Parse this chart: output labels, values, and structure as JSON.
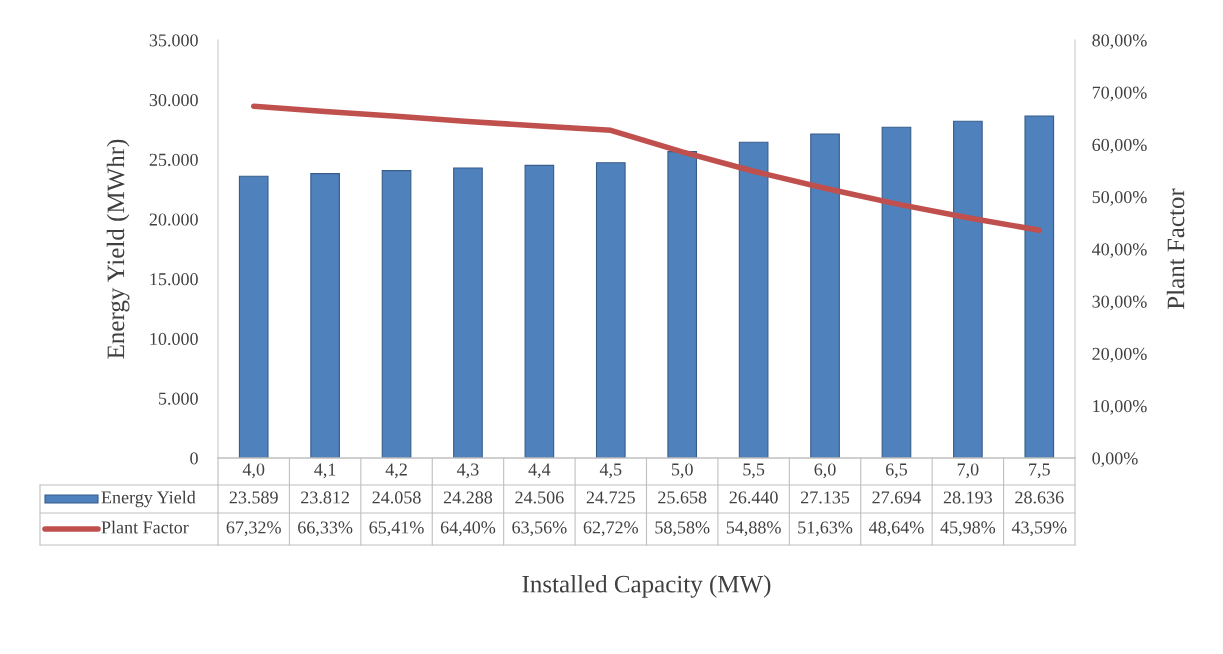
{
  "chart_data": {
    "type": "bar",
    "categories": [
      "4,0",
      "4,1",
      "4,2",
      "4,3",
      "4,4",
      "4,5",
      "5,0",
      "5,5",
      "6,0",
      "6,5",
      "7,0",
      "7,5"
    ],
    "series": [
      {
        "name": "Energy Yield",
        "color": "#4f81bd",
        "values": [
          23589,
          23812,
          24058,
          24288,
          24506,
          24725,
          25658,
          26440,
          27135,
          27694,
          28193,
          28636
        ],
        "value_labels": [
          "23.589",
          "23.812",
          "24.058",
          "24.288",
          "24.506",
          "24.725",
          "25.658",
          "26.440",
          "27.135",
          "27.694",
          "28.193",
          "28.636"
        ]
      },
      {
        "name": "Plant Factor",
        "type": "line",
        "axis": "y2",
        "color": "#c0504d",
        "values": [
          67.32,
          66.33,
          65.41,
          64.4,
          63.56,
          62.72,
          58.58,
          54.88,
          51.63,
          48.64,
          45.98,
          43.59
        ],
        "value_labels": [
          "67,32%",
          "66,33%",
          "65,41%",
          "64,40%",
          "63,56%",
          "62,72%",
          "58,58%",
          "54,88%",
          "51,63%",
          "48,64%",
          "45,98%",
          "43,59%"
        ]
      }
    ],
    "xlabel": "Installed Capacity (MW)",
    "ylabel": "Energy Yield (MWhr)",
    "y2label": "Plant Factor",
    "ylim": [
      0,
      35000
    ],
    "yticks": [
      {
        "value": 0,
        "label": "0"
      },
      {
        "value": 5000,
        "label": "5.000"
      },
      {
        "value": 10000,
        "label": "10.000"
      },
      {
        "value": 15000,
        "label": "15.000"
      },
      {
        "value": 20000,
        "label": "20.000"
      },
      {
        "value": 25000,
        "label": "25.000"
      },
      {
        "value": 30000,
        "label": "30.000"
      },
      {
        "value": 35000,
        "label": "35.000"
      }
    ],
    "y2lim": [
      0,
      80
    ],
    "y2ticks": [
      {
        "value": 0,
        "label": "0,00%"
      },
      {
        "value": 10,
        "label": "10,00%"
      },
      {
        "value": 20,
        "label": "20,00%"
      },
      {
        "value": 30,
        "label": "30,00%"
      },
      {
        "value": 40,
        "label": "40,00%"
      },
      {
        "value": 50,
        "label": "50,00%"
      },
      {
        "value": 60,
        "label": "60,00%"
      },
      {
        "value": 70,
        "label": "70,00%"
      },
      {
        "value": 80,
        "label": "80,00%"
      }
    ],
    "legend": "bottom",
    "grid": false,
    "marker": "none",
    "line_style": "solid"
  }
}
